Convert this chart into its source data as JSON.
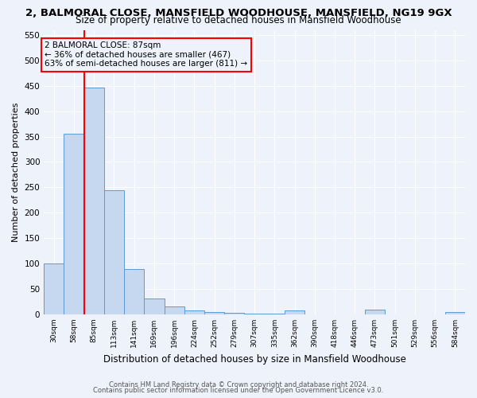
{
  "title1": "2, BALMORAL CLOSE, MANSFIELD WOODHOUSE, MANSFIELD, NG19 9GX",
  "title2": "Size of property relative to detached houses in Mansfield Woodhouse",
  "xlabel": "Distribution of detached houses by size in Mansfield Woodhouse",
  "ylabel": "Number of detached properties",
  "bin_labels": [
    "30sqm",
    "58sqm",
    "85sqm",
    "113sqm",
    "141sqm",
    "169sqm",
    "196sqm",
    "224sqm",
    "252sqm",
    "279sqm",
    "307sqm",
    "335sqm",
    "362sqm",
    "390sqm",
    "418sqm",
    "446sqm",
    "473sqm",
    "501sqm",
    "529sqm",
    "556sqm",
    "584sqm"
  ],
  "bar_heights": [
    100,
    355,
    447,
    245,
    89,
    32,
    15,
    8,
    4,
    3,
    2,
    2,
    7,
    0,
    0,
    0,
    9,
    0,
    0,
    0,
    4
  ],
  "bar_color": "#c5d8f0",
  "bar_edge_color": "#5b9bd5",
  "vline_x_bin": 2,
  "vline_color": "red",
  "annotation_title": "2 BALMORAL CLOSE: 87sqm",
  "annotation_line1": "← 36% of detached houses are smaller (467)",
  "annotation_line2": "63% of semi-detached houses are larger (811) →",
  "ylim": [
    0,
    560
  ],
  "yticks": [
    0,
    50,
    100,
    150,
    200,
    250,
    300,
    350,
    400,
    450,
    500,
    550
  ],
  "footer1": "Contains HM Land Registry data © Crown copyright and database right 2024.",
  "footer2": "Contains public sector information licensed under the Open Government Licence v3.0.",
  "bg_color": "#eef2fb",
  "grid_color": "#ffffff",
  "title1_fontsize": 9.5,
  "title2_fontsize": 8.5,
  "xlabel_fontsize": 8.5,
  "ylabel_fontsize": 8,
  "ann_fontsize": 7.5,
  "footer_fontsize": 6,
  "tick_fontsize": 6.5
}
